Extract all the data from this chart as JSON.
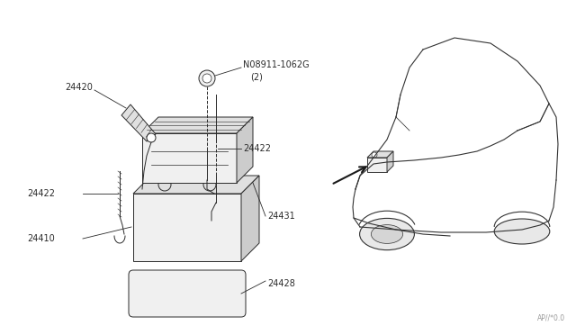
{
  "background_color": "#ffffff",
  "fig_width": 6.4,
  "fig_height": 3.72,
  "dpi": 100,
  "watermark": "AP//*0.0",
  "line_color": "#2a2a2a",
  "lw": 0.7
}
